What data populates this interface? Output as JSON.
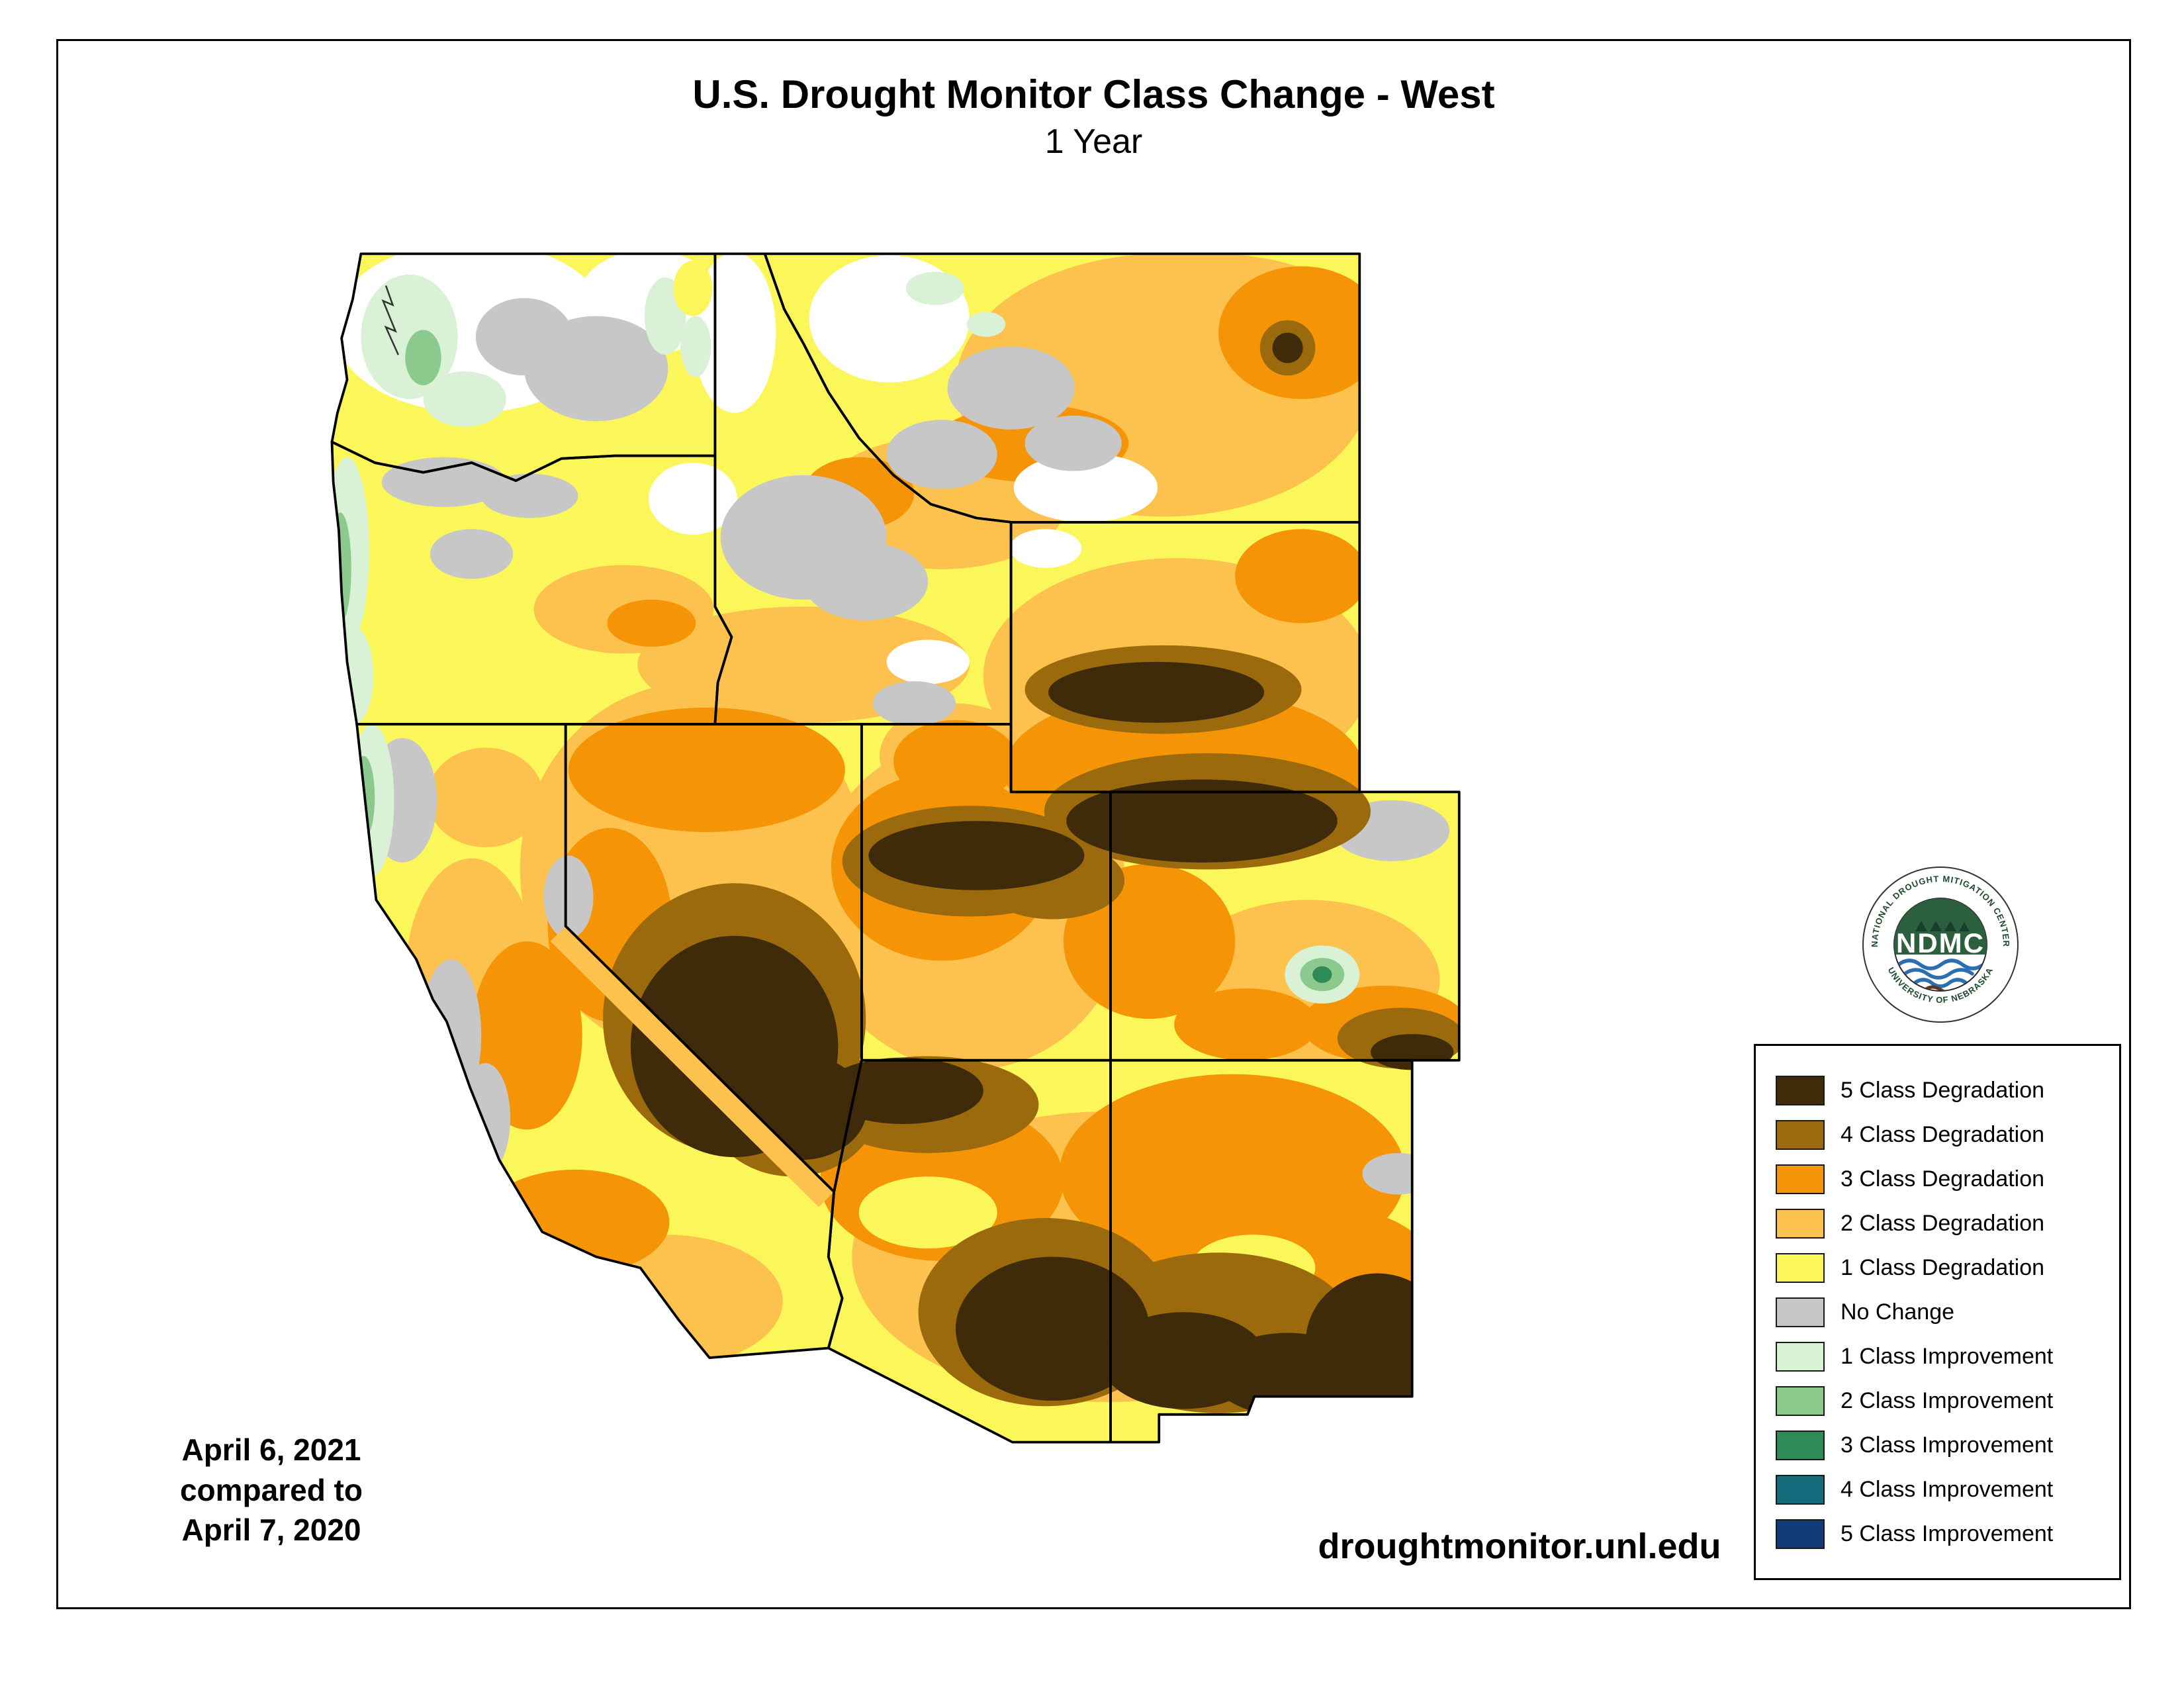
{
  "header": {
    "title": "U.S. Drought Monitor Class Change - West",
    "subtitle": "1 Year"
  },
  "annotations": {
    "date_line1": "April 6, 2021",
    "date_line2": "compared to",
    "date_line3": "April 7, 2020",
    "url": "droughtmonitor.unl.edu"
  },
  "logo": {
    "acronym": "NDMC",
    "ring_top_text": "NATIONAL DROUGHT MITIGATION CENTER",
    "ring_bottom_text": "UNIVERSITY OF NEBRASKA"
  },
  "legend": {
    "items": [
      {
        "key": "deg5",
        "label": "5 Class Degradation",
        "color": "#3f2a09"
      },
      {
        "key": "deg4",
        "label": "4 Class Degradation",
        "color": "#9a6a0c"
      },
      {
        "key": "deg3",
        "label": "3 Class Degradation",
        "color": "#f59406"
      },
      {
        "key": "deg2",
        "label": "2 Class Degradation",
        "color": "#fcc24d"
      },
      {
        "key": "deg1",
        "label": "1 Class Degradation",
        "color": "#fbf65a"
      },
      {
        "key": "nochange",
        "label": "No Change",
        "color": "#c7c7c7"
      },
      {
        "key": "imp1",
        "label": "1 Class Improvement",
        "color": "#d9f2d5"
      },
      {
        "key": "imp2",
        "label": "2 Class Improvement",
        "color": "#8cc98c"
      },
      {
        "key": "imp3",
        "label": "3 Class Improvement",
        "color": "#2e8b57"
      },
      {
        "key": "imp4",
        "label": "4 Class Improvement",
        "color": "#156a7b"
      },
      {
        "key": "imp5",
        "label": "5 Class Improvement",
        "color": "#123c77"
      }
    ]
  },
  "map": {
    "region": "West",
    "states_shown": [
      "WA",
      "OR",
      "CA",
      "NV",
      "ID",
      "MT",
      "WY",
      "UT",
      "CO",
      "AZ",
      "NM"
    ],
    "border_color": "#000000",
    "no_data_color": "#ffffff"
  }
}
